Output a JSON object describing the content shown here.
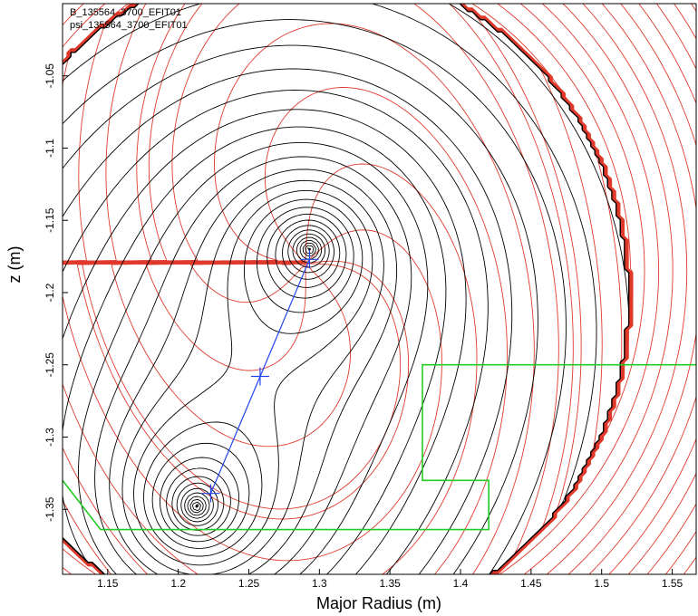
{
  "chart_data": {
    "type": "contour",
    "xlabel": "Major Radius (m)",
    "ylabel": "z (m)",
    "xlim": [
      1.118,
      1.567
    ],
    "ylim": [
      -1.395,
      -1.0
    ],
    "x_ticks": [
      1.15,
      1.2,
      1.25,
      1.3,
      1.35,
      1.4,
      1.45,
      1.5,
      1.55
    ],
    "x_tick_labels": [
      "1.15",
      "1.2",
      "1.25",
      "1.3",
      "1.35",
      "1.4",
      "1.45",
      "1.5",
      "1.55"
    ],
    "y_ticks": [
      -1.05,
      -1.1,
      -1.15,
      -1.2,
      -1.25,
      -1.3,
      -1.35
    ],
    "y_tick_labels": [
      "-1.05",
      "-1.1",
      "-1.15",
      "-1.2",
      "-1.25",
      "-1.3",
      "-1.35"
    ],
    "legend_position": "top-left",
    "legend": [
      {
        "label": "B_135564_3700_EFIT01",
        "color": "#e03a2c"
      },
      {
        "label": "psi_135564_3700_EFIT01",
        "color": "#000000"
      }
    ],
    "psi_contours": {
      "color": "#000000",
      "o_points": [
        {
          "x": 1.293,
          "y": -1.17
        },
        {
          "x": 1.213,
          "y": -1.348
        }
      ],
      "x_point": {
        "x": 1.258,
        "y": -1.258
      }
    },
    "field_contours": {
      "color": "#e03a2c",
      "center": {
        "x": 1.29,
        "y": -1.18
      }
    },
    "wall_outline": {
      "color": "#22cc22",
      "points": [
        [
          1.567,
          -1.25
        ],
        [
          1.373,
          -1.25
        ],
        [
          1.373,
          -1.33
        ],
        [
          1.42,
          -1.33
        ],
        [
          1.42,
          -1.364
        ],
        [
          1.145,
          -1.364
        ],
        [
          1.118,
          -1.33
        ]
      ]
    },
    "line_segment": {
      "color": "#2244ee",
      "points": [
        [
          1.293,
          -1.177
        ],
        [
          1.258,
          -1.258
        ],
        [
          1.223,
          -1.339
        ]
      ]
    }
  }
}
